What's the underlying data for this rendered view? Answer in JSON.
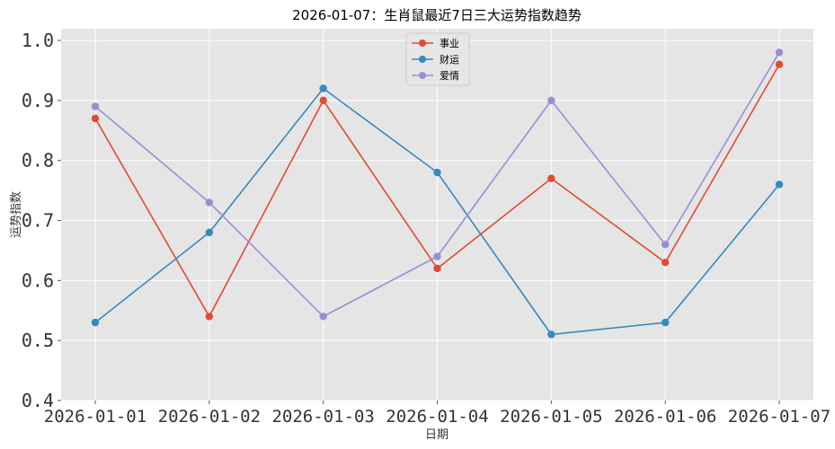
{
  "chart_data": {
    "type": "line",
    "title": "2026-01-07：生肖鼠最近7日三大运势指数趋势",
    "xlabel": "日期",
    "ylabel": "运势指数",
    "categories": [
      "2026-01-01",
      "2026-01-02",
      "2026-01-03",
      "2026-01-04",
      "2026-01-05",
      "2026-01-06",
      "2026-01-07"
    ],
    "ylim": [
      0.4,
      1.0
    ],
    "yticks": [
      "0.4",
      "0.5",
      "0.6",
      "0.7",
      "0.8",
      "0.9",
      "1.0"
    ],
    "grid": true,
    "legend_position": "top-center",
    "series": [
      {
        "name": "事业",
        "color": "#E24A33",
        "values": [
          0.87,
          0.54,
          0.9,
          0.62,
          0.77,
          0.63,
          0.96
        ]
      },
      {
        "name": "财运",
        "color": "#348ABD",
        "values": [
          0.53,
          0.68,
          0.92,
          0.78,
          0.51,
          0.53,
          0.76
        ]
      },
      {
        "name": "爱情",
        "color": "#988ED5",
        "values": [
          0.89,
          0.73,
          0.54,
          0.64,
          0.9,
          0.66,
          0.98
        ]
      }
    ]
  }
}
